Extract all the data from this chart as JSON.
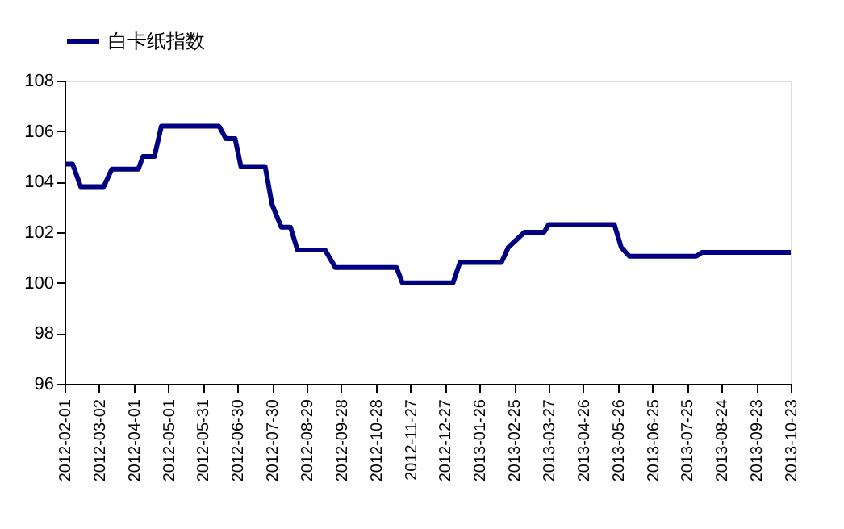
{
  "chart_data": {
    "type": "line",
    "x": [
      "2012-02-01",
      "2012-02-08",
      "2012-02-15",
      "2012-03-06",
      "2012-03-13",
      "2012-04-05",
      "2012-04-09",
      "2012-04-19",
      "2012-04-25",
      "2012-06-14",
      "2012-06-20",
      "2012-06-28",
      "2012-07-03",
      "2012-07-24",
      "2012-07-30",
      "2012-08-07",
      "2012-08-15",
      "2012-08-21",
      "2012-09-14",
      "2012-09-23",
      "2012-11-15",
      "2012-11-20",
      "2013-01-03",
      "2013-01-09",
      "2013-02-14",
      "2013-02-20",
      "2013-03-06",
      "2013-03-23",
      "2013-03-27",
      "2013-05-23",
      "2013-05-29",
      "2013-06-05",
      "2013-08-02",
      "2013-08-07",
      "2013-10-23"
    ],
    "series": [
      {
        "name": "白卡纸指数",
        "color": "#000080",
        "values": [
          104.7,
          104.7,
          103.8,
          103.8,
          104.5,
          104.5,
          105.0,
          105.0,
          106.2,
          106.2,
          105.7,
          105.7,
          104.6,
          104.6,
          103.1,
          102.2,
          102.2,
          101.3,
          101.3,
          100.6,
          100.6,
          100.0,
          100.0,
          100.8,
          100.8,
          101.4,
          102.0,
          102.0,
          102.3,
          102.3,
          101.4,
          101.05,
          101.05,
          101.2,
          101.2
        ]
      }
    ],
    "xlim": [
      "2012-02-01",
      "2013-10-23"
    ],
    "xticks": [
      "2012-02-01",
      "2012-03-02",
      "2012-04-01",
      "2012-05-01",
      "2012-05-31",
      "2012-06-30",
      "2012-07-30",
      "2012-08-29",
      "2012-09-28",
      "2012-10-28",
      "2012-11-27",
      "2012-12-27",
      "2013-01-26",
      "2013-02-25",
      "2013-03-27",
      "2013-04-26",
      "2013-05-26",
      "2013-06-25",
      "2013-07-25",
      "2013-08-24",
      "2013-09-23",
      "2013-10-23"
    ],
    "ylim": [
      96,
      108
    ],
    "yticks": [
      96,
      98,
      100,
      102,
      104,
      106,
      108
    ],
    "grid": false,
    "legend": "top",
    "marker": "none",
    "line_style": "solid"
  }
}
